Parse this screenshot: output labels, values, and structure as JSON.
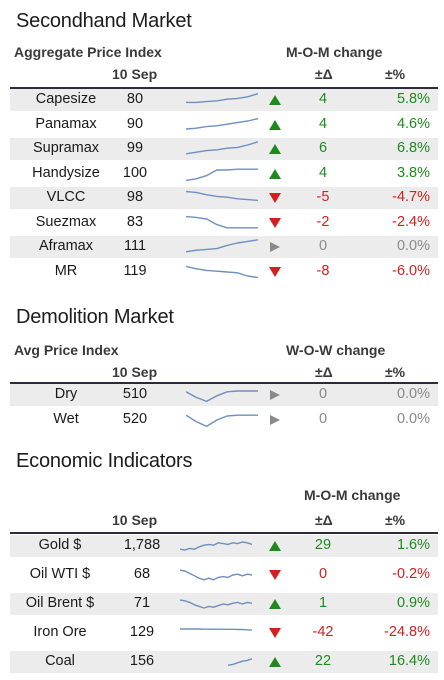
{
  "colors": {
    "up": "#1e8a1e",
    "down": "#d21f1f",
    "flat": "#8a8a8a",
    "spark": "#6f8fbf",
    "shade": "#ececec"
  },
  "secondhand": {
    "title": "Secondhand Market",
    "index_label": "Aggregate Price Index",
    "change_label": "M-O-M change",
    "date": "10 Sep",
    "delta_label": "±Δ",
    "pct_label": "±%",
    "rows": [
      {
        "name": "Capesize",
        "value": "80",
        "delta": "4",
        "pct": "5.8%",
        "trend": "up",
        "spark": [
          0.35,
          0.35,
          0.4,
          0.45,
          0.55,
          0.6,
          0.7,
          0.9
        ]
      },
      {
        "name": "Panamax",
        "value": "90",
        "delta": "4",
        "pct": "4.6%",
        "trend": "up",
        "spark": [
          0.25,
          0.3,
          0.4,
          0.45,
          0.55,
          0.65,
          0.75,
          0.9
        ]
      },
      {
        "name": "Supramax",
        "value": "99",
        "delta": "6",
        "pct": "6.8%",
        "trend": "up",
        "spark": [
          0.2,
          0.3,
          0.4,
          0.45,
          0.55,
          0.6,
          0.75,
          0.95
        ]
      },
      {
        "name": "Handysize",
        "value": "100",
        "delta": "4",
        "pct": "3.8%",
        "trend": "up",
        "spark": [
          0.1,
          0.2,
          0.4,
          0.75,
          0.75,
          0.8,
          0.8,
          0.8
        ]
      },
      {
        "name": "VLCC",
        "value": "98",
        "delta": "-5",
        "pct": "-4.7%",
        "trend": "down",
        "spark": [
          0.9,
          0.85,
          0.7,
          0.6,
          0.55,
          0.45,
          0.4,
          0.35
        ]
      },
      {
        "name": "Suezmax",
        "value": "83",
        "delta": "-2",
        "pct": "-2.4%",
        "trend": "down",
        "spark": [
          0.9,
          0.85,
          0.75,
          0.4,
          0.2,
          0.2,
          0.2,
          0.2
        ]
      },
      {
        "name": "Aframax",
        "value": "111",
        "delta": "0",
        "pct": "0.0%",
        "trend": "flat",
        "spark": [
          0.2,
          0.3,
          0.35,
          0.4,
          0.6,
          0.75,
          0.85,
          0.95
        ]
      },
      {
        "name": "MR",
        "value": "119",
        "delta": "-8",
        "pct": "-6.0%",
        "trend": "down",
        "spark": [
          0.85,
          0.7,
          0.6,
          0.55,
          0.5,
          0.45,
          0.25,
          0.15
        ]
      }
    ]
  },
  "demolition": {
    "title": "Demolition Market",
    "index_label": "Avg Price Index",
    "change_label": "W-O-W change",
    "date": "10 Sep",
    "delta_label": "±Δ",
    "pct_label": "±%",
    "rows": [
      {
        "name": "Dry",
        "value": "510",
        "delta": "0",
        "pct": "0.0%",
        "trend": "flat",
        "spark": [
          0.7,
          0.35,
          0.1,
          0.45,
          0.7,
          0.75,
          0.75,
          0.75
        ]
      },
      {
        "name": "Wet",
        "value": "520",
        "delta": "0",
        "pct": "0.0%",
        "trend": "flat",
        "spark": [
          0.8,
          0.4,
          0.1,
          0.5,
          0.75,
          0.8,
          0.8,
          0.8
        ]
      }
    ]
  },
  "economic": {
    "title": "Economic Indicators",
    "change_label": "M-O-M change",
    "date": "10 Sep",
    "delta_label": "±Δ",
    "pct_label": "±%",
    "rows": [
      {
        "name": "Gold $",
        "value": "1,788",
        "delta": "29",
        "pct": "1.6%",
        "trend": "up",
        "spark": [
          0.3,
          0.25,
          0.35,
          0.3,
          0.45,
          0.55,
          0.6,
          0.55,
          0.7,
          0.65,
          0.6,
          0.7,
          0.65,
          0.75,
          0.7,
          0.6
        ]
      },
      {
        "name": "Oil WTI $",
        "value": "68",
        "delta": "0",
        "pct": "-0.2%",
        "trend": "down",
        "spark": [
          0.8,
          0.75,
          0.6,
          0.45,
          0.3,
          0.2,
          0.3,
          0.2,
          0.35,
          0.4,
          0.35,
          0.5,
          0.55,
          0.45,
          0.55,
          0.5
        ]
      },
      {
        "name": "Oil Brent $",
        "value": "71",
        "delta": "1",
        "pct": "0.9%",
        "trend": "up",
        "spark": [
          0.75,
          0.7,
          0.6,
          0.45,
          0.35,
          0.25,
          0.35,
          0.3,
          0.4,
          0.5,
          0.45,
          0.55,
          0.6,
          0.5,
          0.6,
          0.55
        ]
      },
      {
        "name": "Iron Ore",
        "value": "129",
        "delta": "-42",
        "pct": "-24.8%",
        "trend": "down",
        "spark": [
          0.75,
          0.75,
          0.75,
          0.75,
          0.75,
          0.74,
          0.74,
          0.74,
          0.74,
          0.73,
          0.73,
          0.73,
          0.72,
          0.72,
          0.7,
          0.68
        ]
      },
      {
        "name": "Coal",
        "value": "156",
        "delta": "22",
        "pct": "16.4%",
        "trend": "up",
        "spark": [
          null,
          null,
          null,
          null,
          null,
          null,
          null,
          null,
          null,
          null,
          0.3,
          0.35,
          0.45,
          0.55,
          0.6,
          0.7
        ]
      }
    ]
  }
}
